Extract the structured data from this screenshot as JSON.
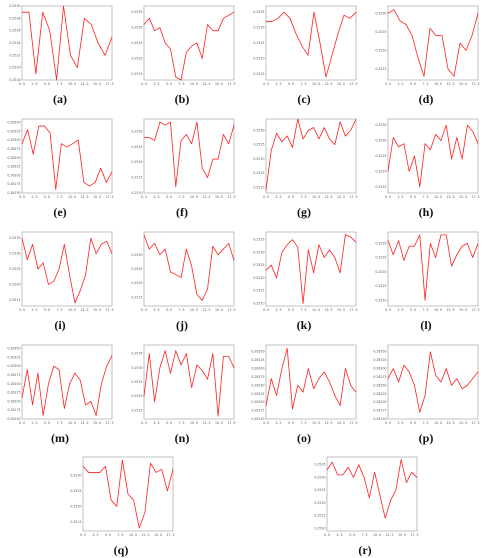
{
  "colors": {
    "series": "#ff2020",
    "frame": "#9a9a9a",
    "tick_text": "#555555",
    "caption": "#111111"
  },
  "chart_data": [
    {
      "label": "(a)",
      "type": "line",
      "x_ticks": [
        "0. 0",
        "2. 5",
        "5. 0",
        "7. 5",
        "10. 0",
        "12. 5",
        "15. 0",
        "17. 5"
      ],
      "y_ticks": [
        "0.2530",
        "0.2528",
        "0.2526",
        "0.2524",
        "0.2522",
        "0.2520",
        "0.2518"
      ],
      "ylim": [
        0.2518,
        0.253
      ],
      "xlim": [
        0,
        18
      ],
      "y": [
        0.2529,
        0.2529,
        0.2519,
        0.2529,
        0.2526,
        0.2518,
        0.253,
        0.2522,
        0.252,
        0.2528,
        0.2527,
        0.2524,
        0.2522,
        0.2525
      ]
    },
    {
      "label": "(b)",
      "type": "line",
      "x_ticks": [
        "0. 0",
        "2. 5",
        "5. 0",
        "7. 5",
        "10. 0",
        "12. 5",
        "15. 0",
        "17. 5"
      ],
      "y_ticks": [
        "0.2535",
        "0.2530",
        "0.2525",
        "0.2520",
        "0.2515"
      ],
      "ylim": [
        0.2513,
        0.2537
      ],
      "xlim": [
        0,
        18
      ],
      "y": [
        0.2531,
        0.2533,
        0.2529,
        0.253,
        0.2525,
        0.2523,
        0.2514,
        0.2513,
        0.2522,
        0.2524,
        0.2525,
        0.252,
        0.2531,
        0.2529,
        0.2529,
        0.2533,
        0.2534,
        0.2535
      ]
    },
    {
      "label": "(c)",
      "type": "line",
      "x_ticks": [
        "0. 0",
        "2. 5",
        "5. 0",
        "7. 5",
        "10. 0",
        "12. 5",
        "15. 0",
        "17. 5"
      ],
      "y_ticks": [
        "0.2535",
        "0.2530",
        "0.2525",
        "0.2520",
        "0.2515"
      ],
      "ylim": [
        0.2513,
        0.2537
      ],
      "xlim": [
        0,
        18
      ],
      "y": [
        0.2532,
        0.2532,
        0.2533,
        0.2535,
        0.2533,
        0.2528,
        0.2524,
        0.2521,
        0.2535,
        0.2525,
        0.2514,
        0.2521,
        0.2528,
        0.2534,
        0.2533,
        0.2535
      ]
    },
    {
      "label": "(d)",
      "type": "line",
      "x_ticks": [
        "0. 0",
        "2. 5",
        "5. 0",
        "7. 5",
        "10. 0",
        "12. 5",
        "15. 0",
        "17. 5"
      ],
      "y_ticks": [
        "0.2530",
        "0.2525",
        "0.2520",
        "0.2515"
      ],
      "ylim": [
        0.2512,
        0.2532
      ],
      "xlim": [
        0,
        18
      ],
      "y": [
        0.253,
        0.2531,
        0.2528,
        0.2527,
        0.2524,
        0.2518,
        0.2513,
        0.2526,
        0.2524,
        0.2524,
        0.2515,
        0.2513,
        0.2522,
        0.252,
        0.2524,
        0.253
      ]
    },
    {
      "label": "(e)",
      "type": "line",
      "x_ticks": [
        "0. 0",
        "2. 5",
        "5. 0",
        "7. 5",
        "10. 0",
        "12. 5",
        "15. 0",
        "17. 5"
      ],
      "y_ticks": [
        "0.26350",
        "0.26325",
        "0.26300",
        "0.26275",
        "0.26250",
        "0.26225",
        "0.26200",
        "0.26175",
        "0.26150"
      ],
      "ylim": [
        0.2615,
        0.2636
      ],
      "xlim": [
        0,
        18
      ],
      "y": [
        0.2629,
        0.2633,
        0.2626,
        0.2634,
        0.2634,
        0.2632,
        0.2616,
        0.2629,
        0.2628,
        0.2629,
        0.263,
        0.2618,
        0.2617,
        0.2618,
        0.2622,
        0.2618,
        0.2621
      ]
    },
    {
      "label": "(f)",
      "type": "line",
      "x_ticks": [
        "0. 0",
        "2. 5",
        "5. 0",
        "7. 5",
        "10. 0",
        "12. 5",
        "15. 0",
        "17. 5"
      ],
      "y_ticks": [
        "0.2530",
        "0.2525",
        "0.2520",
        "0.2515",
        "0.2510"
      ],
      "ylim": [
        0.251,
        0.2534
      ],
      "xlim": [
        0,
        18
      ],
      "y": [
        0.2528,
        0.2528,
        0.2527,
        0.2533,
        0.2532,
        0.2533,
        0.2512,
        0.2527,
        0.2529,
        0.2526,
        0.2533,
        0.2518,
        0.2515,
        0.2521,
        0.2521,
        0.2529,
        0.2526,
        0.2532
      ]
    },
    {
      "label": "(g)",
      "type": "line",
      "x_ticks": [
        "0. 0",
        "2. 5",
        "5. 0",
        "7. 5",
        "10. 0",
        "12. 5",
        "15. 0",
        "17. 5"
      ],
      "y_ticks": [
        "0.2530",
        "0.2525",
        "0.2520",
        "0.2515",
        "0.2510"
      ],
      "ylim": [
        0.2508,
        0.2534
      ],
      "xlim": [
        0,
        18
      ],
      "y": [
        0.2509,
        0.2523,
        0.2529,
        0.2526,
        0.2528,
        0.2524,
        0.2534,
        0.2527,
        0.253,
        0.2531,
        0.2527,
        0.2531,
        0.2527,
        0.2525,
        0.2533,
        0.2528,
        0.253,
        0.2534
      ]
    },
    {
      "label": "(h)",
      "type": "line",
      "x_ticks": [
        "0. 0",
        "2. 5",
        "5. 0",
        "7. 5",
        "10. 0",
        "12. 5",
        "15. 0",
        "17. 5"
      ],
      "y_ticks": [
        "0.2535",
        "0.2530",
        "0.2525",
        "0.2520",
        "0.2515"
      ],
      "ylim": [
        0.2513,
        0.2537
      ],
      "xlim": [
        0,
        18
      ],
      "y": [
        0.252,
        0.2531,
        0.2528,
        0.2529,
        0.252,
        0.2525,
        0.2515,
        0.2529,
        0.2527,
        0.2532,
        0.253,
        0.2535,
        0.2524,
        0.2531,
        0.2524,
        0.2535,
        0.2533,
        0.2529
      ]
    },
    {
      "label": "(i)",
      "type": "line",
      "x_ticks": [
        "0. 0",
        "2. 5",
        "5. 0",
        "7. 5",
        "10. 0",
        "12. 5",
        "15. 0",
        "17. 5"
      ],
      "y_ticks": [
        "0.2535",
        "0.2530",
        "0.2525",
        "0.2520",
        "0.2515"
      ],
      "ylim": [
        0.2513,
        0.2537
      ],
      "xlim": [
        0,
        18
      ],
      "y": [
        0.2535,
        0.2528,
        0.2533,
        0.2525,
        0.2527,
        0.252,
        0.2521,
        0.2525,
        0.2533,
        0.2523,
        0.2514,
        0.2518,
        0.2523,
        0.2535,
        0.253,
        0.2533,
        0.2534,
        0.253
      ]
    },
    {
      "label": "(j)",
      "type": "line",
      "x_ticks": [
        "0. 0",
        "2. 5",
        "5. 0",
        "7. 5",
        "10. 0",
        "12. 5",
        "15. 0",
        "17. 5"
      ],
      "y_ticks": [
        "0.2530",
        "0.2525",
        "0.2520",
        "0.2515"
      ],
      "ylim": [
        0.2512,
        0.2538
      ],
      "xlim": [
        0,
        18
      ],
      "y": [
        0.2537,
        0.2532,
        0.2534,
        0.253,
        0.2532,
        0.2524,
        0.2523,
        0.2522,
        0.2532,
        0.2526,
        0.2516,
        0.2514,
        0.2518,
        0.2533,
        0.253,
        0.2532,
        0.2534,
        0.2528
      ]
    },
    {
      "label": "(k)",
      "type": "line",
      "x_ticks": [
        "0. 0",
        "2. 5",
        "5. 0",
        "7. 5",
        "10. 0",
        "12. 5",
        "15. 0",
        "17. 5"
      ],
      "y_ticks": [
        "0.2535",
        "0.2530",
        "0.2525",
        "0.2520",
        "0.2515",
        "0.2510"
      ],
      "ylim": [
        0.2509,
        0.2538
      ],
      "xlim": [
        0,
        18
      ],
      "y": [
        0.2523,
        0.2525,
        0.252,
        0.253,
        0.2533,
        0.2535,
        0.2532,
        0.251,
        0.2531,
        0.2522,
        0.2533,
        0.2528,
        0.2531,
        0.2528,
        0.2522,
        0.2537,
        0.2536,
        0.2534
      ]
    },
    {
      "label": "(l)",
      "type": "line",
      "x_ticks": [
        "0. 0",
        "2. 5",
        "5. 0",
        "7. 5",
        "10. 0",
        "12. 5",
        "15. 0",
        "17. 5"
      ],
      "y_ticks": [
        "0.2530",
        "0.2525",
        "0.2520",
        "0.2515",
        "0.2510"
      ],
      "ylim": [
        0.2508,
        0.2534
      ],
      "xlim": [
        0,
        18
      ],
      "y": [
        0.2531,
        0.2526,
        0.2531,
        0.2524,
        0.2529,
        0.2529,
        0.2533,
        0.251,
        0.253,
        0.2525,
        0.2533,
        0.2533,
        0.2522,
        0.2526,
        0.2529,
        0.253,
        0.2525,
        0.253
      ]
    },
    {
      "label": "(m)",
      "type": "line",
      "x_ticks": [
        "0. 0",
        "2. 5",
        "5. 0",
        "7. 5",
        "10. 0",
        "12. 5",
        "15. 0",
        "17. 5"
      ],
      "y_ticks": [
        "0.26350",
        "0.26325",
        "0.26300",
        "0.26275",
        "0.26250",
        "0.26225",
        "0.26200",
        "0.26175",
        "0.26150"
      ],
      "ylim": [
        0.2615,
        0.2636
      ],
      "xlim": [
        0,
        18
      ],
      "y": [
        0.2621,
        0.2629,
        0.2619,
        0.2628,
        0.2616,
        0.2625,
        0.263,
        0.2629,
        0.2618,
        0.2625,
        0.2628,
        0.2626,
        0.2619,
        0.262,
        0.2616,
        0.2625,
        0.263,
        0.2633
      ]
    },
    {
      "label": "(n)",
      "type": "line",
      "x_ticks": [
        "0. 0",
        "2. 5",
        "5. 0",
        "7. 5",
        "10. 0",
        "12. 5",
        "15. 0",
        "17. 5"
      ],
      "y_ticks": [
        "0.2535",
        "0.2530",
        "0.2525",
        "0.2520",
        "0.2515"
      ],
      "ylim": [
        0.2512,
        0.2538
      ],
      "xlim": [
        0,
        18
      ],
      "y": [
        0.252,
        0.2535,
        0.2518,
        0.253,
        0.2536,
        0.2528,
        0.2536,
        0.2531,
        0.2535,
        0.2523,
        0.2531,
        0.2529,
        0.2526,
        0.2535,
        0.2513,
        0.2534,
        0.2534,
        0.253
      ]
    },
    {
      "label": "(o)",
      "type": "line",
      "x_ticks": [
        "0. 0",
        "2. 5",
        "5. 0",
        "7. 5",
        "10. 0",
        "12. 5",
        "15. 0",
        "17. 5"
      ],
      "y_ticks": [
        "0.26350",
        "0.26325",
        "0.26300",
        "0.26275",
        "0.26250",
        "0.26225",
        "0.26200",
        "0.26175",
        "0.26150"
      ],
      "ylim": [
        0.2615,
        0.2637
      ],
      "xlim": [
        0,
        18
      ],
      "y": [
        0.2619,
        0.2627,
        0.2622,
        0.263,
        0.2636,
        0.2618,
        0.2625,
        0.2623,
        0.263,
        0.2624,
        0.2627,
        0.2629,
        0.2626,
        0.2622,
        0.2619,
        0.263,
        0.2625,
        0.2623
      ]
    },
    {
      "label": "(p)",
      "type": "line",
      "x_ticks": [
        "0. 0",
        "2. 5",
        "5. 0",
        "7. 5",
        "10. 0",
        "12. 5",
        "15. 0",
        "17. 5"
      ],
      "y_ticks": [
        "0.26350",
        "0.26325",
        "0.26300",
        "0.26275",
        "0.26250",
        "0.26225",
        "0.26200",
        "0.26175",
        "0.26150"
      ],
      "ylim": [
        0.2615,
        0.2637
      ],
      "xlim": [
        0,
        18
      ],
      "y": [
        0.2627,
        0.263,
        0.2626,
        0.2631,
        0.2629,
        0.2625,
        0.2617,
        0.2622,
        0.2635,
        0.2628,
        0.2626,
        0.263,
        0.2625,
        0.2627,
        0.2624,
        0.2625,
        0.2627,
        0.2629
      ]
    },
    {
      "label": "(q)",
      "type": "line",
      "x_ticks": [
        "0. 0",
        "2. 5",
        "5. 0",
        "7. 5",
        "10. 0",
        "12. 5",
        "15. 0",
        "17. 5"
      ],
      "y_ticks": [
        "0.2530",
        "0.2525",
        "0.2520",
        "0.2515"
      ],
      "ylim": [
        0.2512,
        0.2536
      ],
      "xlim": [
        0,
        18
      ],
      "y": [
        0.2533,
        0.2531,
        0.2531,
        0.2531,
        0.2533,
        0.2522,
        0.252,
        0.2535,
        0.2524,
        0.2522,
        0.2513,
        0.2518,
        0.2534,
        0.2531,
        0.2532,
        0.2525,
        0.2532
      ]
    },
    {
      "label": "(r)",
      "type": "line",
      "x_ticks": [
        "0. 0",
        "2. 5",
        "5. 0",
        "7. 5",
        "10. 0",
        "12. 5",
        "15. 0",
        "17. 5"
      ],
      "y_ticks": [
        "0.2535",
        "0.2530",
        "0.2525",
        "0.2520",
        "0.2515",
        "0.2510"
      ],
      "ylim": [
        0.2509,
        0.2538
      ],
      "xlim": [
        0,
        18
      ],
      "y": [
        0.2533,
        0.2536,
        0.2531,
        0.2531,
        0.2534,
        0.253,
        0.2535,
        0.253,
        0.2522,
        0.2532,
        0.2523,
        0.2514,
        0.2521,
        0.2525,
        0.2537,
        0.2528,
        0.2532,
        0.253
      ]
    }
  ]
}
